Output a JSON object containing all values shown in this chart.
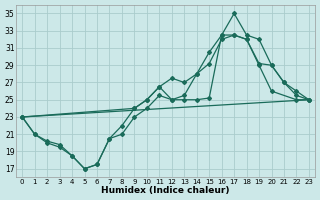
{
  "xlabel": "Humidex (Indice chaleur)",
  "bg_color": "#cce8e8",
  "grid_color": "#aacccc",
  "line_color": "#1a6b5a",
  "xlim": [
    -0.5,
    23.5
  ],
  "ylim": [
    16,
    36
  ],
  "yticks": [
    17,
    19,
    21,
    23,
    25,
    27,
    29,
    31,
    33,
    35
  ],
  "xticks": [
    0,
    1,
    2,
    3,
    4,
    5,
    6,
    7,
    8,
    9,
    10,
    11,
    12,
    13,
    14,
    15,
    16,
    17,
    18,
    19,
    20,
    21,
    22,
    23
  ],
  "line1_x": [
    0,
    1,
    2,
    3,
    4,
    5,
    6,
    7,
    8,
    9,
    10,
    11,
    12,
    13,
    14,
    15,
    16,
    17,
    18,
    19,
    20,
    21,
    22,
    23
  ],
  "line1_y": [
    23,
    21,
    20,
    19.5,
    18.5,
    17,
    17.5,
    20.5,
    22,
    24,
    25,
    26.5,
    27.5,
    27,
    28,
    30.5,
    32.5,
    35,
    32.5,
    32,
    29,
    27,
    25.5,
    25
  ],
  "line2_x": [
    0,
    1,
    2,
    3,
    4,
    5,
    6,
    7,
    8,
    9,
    10,
    11,
    12,
    13,
    14,
    15,
    16,
    17,
    18,
    19,
    20,
    22,
    23
  ],
  "line2_y": [
    23,
    21,
    20.2,
    19.8,
    18.5,
    17,
    17.5,
    20.5,
    21,
    23,
    24,
    25.5,
    25,
    25,
    25,
    25.2,
    32.5,
    32.5,
    32,
    29,
    26,
    25,
    25
  ],
  "line3_x": [
    0,
    9,
    10,
    11,
    12,
    13,
    14,
    15,
    16,
    17,
    18,
    19,
    20,
    21,
    22,
    23
  ],
  "line3_y": [
    23,
    24,
    25,
    26.5,
    25,
    25.5,
    28,
    29.2,
    32,
    32.5,
    32,
    29.2,
    29,
    27,
    26,
    25
  ],
  "line4_x": [
    0,
    23
  ],
  "line4_y": [
    23,
    25
  ]
}
